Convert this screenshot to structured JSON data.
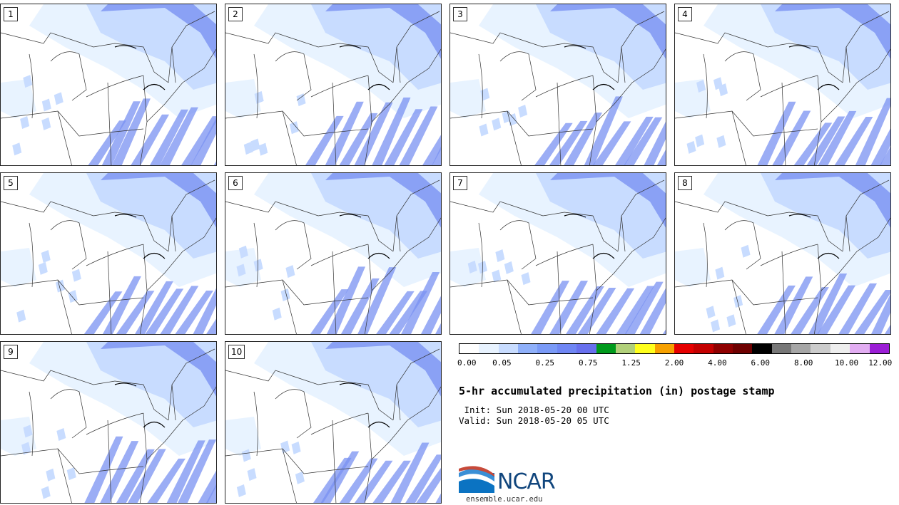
{
  "panels": [
    {
      "label": "1"
    },
    {
      "label": "2"
    },
    {
      "label": "3"
    },
    {
      "label": "4"
    },
    {
      "label": "5"
    },
    {
      "label": "6"
    },
    {
      "label": "7"
    },
    {
      "label": "8"
    },
    {
      "label": "9"
    },
    {
      "label": "10"
    }
  ],
  "colorbar": {
    "colors": [
      "#ffffff",
      "#e8f3ff",
      "#c8dcff",
      "#8fb0fa",
      "#7a9af7",
      "#6f86f4",
      "#6870ee",
      "#009a1c",
      "#b1d07a",
      "#ffff1c",
      "#f7a100",
      "#e60000",
      "#c40000",
      "#8f0000",
      "#6e0000",
      "#000000",
      "#777777",
      "#a6a6a6",
      "#cccccc",
      "#eeeeee",
      "#e2adf2",
      "#9b1ed6"
    ],
    "tick_labels": [
      "0.00",
      "0.05",
      "0.25",
      "0.75",
      "1.25",
      "2.00",
      "4.00",
      "6.00",
      "8.00",
      "10.00",
      "12.00"
    ]
  },
  "map": {
    "land_color": "#ffffff",
    "light_precip": "#e8f3ff",
    "mid_precip": "#c8dcff",
    "heavy_precip": "#7a92f2",
    "border_color": "#333333"
  },
  "title": "5-hr accumulated precipitation (in) postage stamp",
  "init": " Init: Sun 2018-05-20 00 UTC",
  "valid": "Valid: Sun 2018-05-20 05 UTC",
  "logo": {
    "text": "NCAR",
    "site": "ensemble.ucar.edu"
  }
}
